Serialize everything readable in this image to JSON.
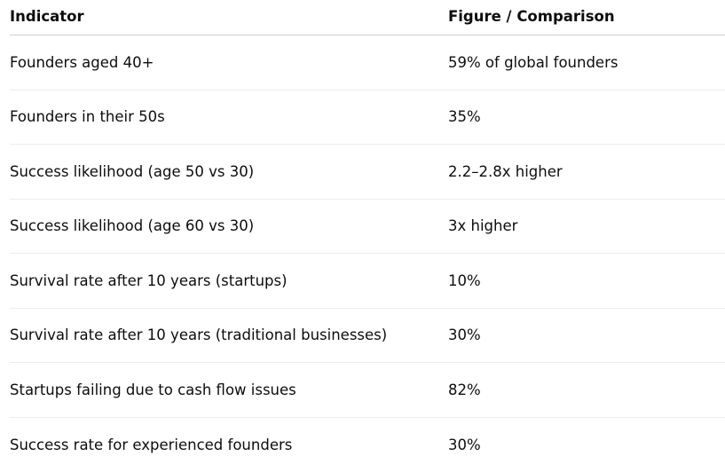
{
  "table": {
    "header": [
      "Indicator",
      "Figure / Comparison"
    ],
    "rows": [
      [
        "Founders aged 40+",
        "59% of global founders"
      ],
      [
        "Founders in their 50s",
        "35%"
      ],
      [
        "Success likelihood (age 50 vs 30)",
        "2.2–2.8x higher"
      ],
      [
        "Success likelihood (age 60 vs 30)",
        "3x higher"
      ],
      [
        "Survival rate after 10 years (startups)",
        "10%"
      ],
      [
        "Survival rate after 10 years (traditional businesses)",
        "30%"
      ],
      [
        "Startups failing due to cash flow issues",
        "82%"
      ],
      [
        "Success rate for experienced founders",
        "30%"
      ]
    ]
  }
}
